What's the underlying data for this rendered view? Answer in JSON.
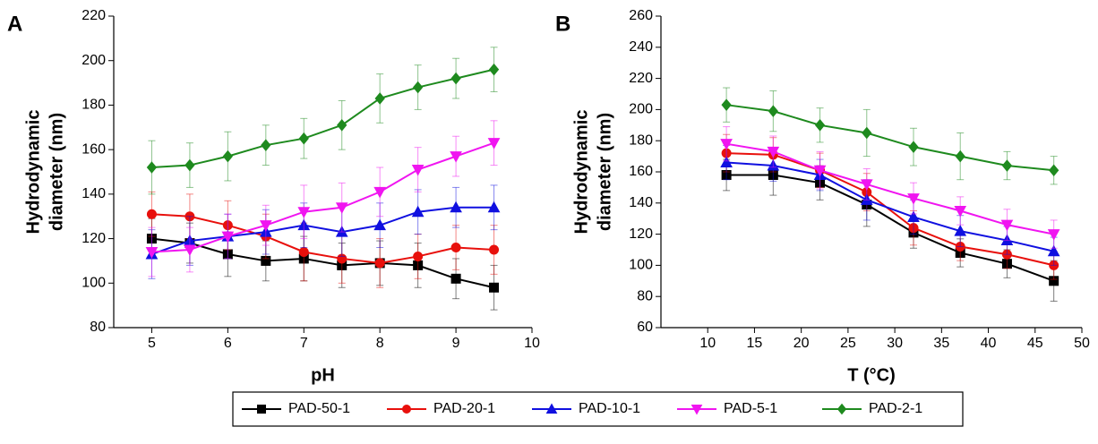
{
  "chart_data": [
    {
      "type": "line",
      "panel": "A",
      "xlabel": "pH",
      "ylabel": [
        "Hydrodynamic",
        "diameter (nm)"
      ],
      "x": [
        5,
        5.5,
        6,
        6.5,
        7,
        7.5,
        8,
        8.5,
        9,
        9.5
      ],
      "xlim": [
        4.5,
        10
      ],
      "xticks": [
        5,
        6,
        7,
        8,
        9,
        10
      ],
      "ylim": [
        80,
        220
      ],
      "yticks": [
        80,
        100,
        120,
        140,
        160,
        180,
        200,
        220
      ],
      "series": [
        {
          "name": "PAD-50-1",
          "color": "#000000",
          "marker": "square",
          "values": [
            120,
            118,
            113,
            110,
            111,
            108,
            109,
            108,
            102,
            98
          ],
          "errors": [
            9,
            9,
            10,
            9,
            10,
            10,
            10,
            10,
            9,
            10
          ]
        },
        {
          "name": "PAD-20-1",
          "color": "#e8100c",
          "marker": "circle",
          "values": [
            131,
            130,
            126,
            121,
            114,
            111,
            109,
            112,
            116,
            115
          ],
          "errors": [
            10,
            10,
            11,
            10,
            13,
            11,
            11,
            10,
            10,
            11
          ]
        },
        {
          "name": "PAD-10-1",
          "color": "#1010e0",
          "marker": "triangle-up",
          "values": [
            113,
            119,
            121,
            123,
            126,
            123,
            126,
            132,
            134,
            134
          ],
          "errors": [
            11,
            11,
            10,
            10,
            10,
            11,
            10,
            10,
            9,
            10
          ]
        },
        {
          "name": "PAD-5-1",
          "color": "#f015f0",
          "marker": "triangle-down",
          "values": [
            114,
            115,
            121,
            126,
            132,
            134,
            141,
            151,
            157,
            163
          ],
          "errors": [
            11,
            10,
            10,
            9,
            12,
            11,
            11,
            10,
            9,
            10
          ]
        },
        {
          "name": "PAD-2-1",
          "color": "#1e8a1e",
          "marker": "diamond",
          "values": [
            152,
            153,
            157,
            162,
            165,
            171,
            183,
            188,
            192,
            196
          ],
          "errors": [
            12,
            10,
            11,
            9,
            9,
            11,
            11,
            10,
            9,
            10
          ]
        }
      ]
    },
    {
      "type": "line",
      "panel": "B",
      "xlabel": "T (°C)",
      "ylabel": [
        "Hydrodynamic",
        "diameter (nm)"
      ],
      "x": [
        12,
        17,
        22,
        27,
        32,
        37,
        42,
        47
      ],
      "xlim": [
        5,
        50
      ],
      "xticks": [
        10,
        15,
        20,
        25,
        30,
        35,
        40,
        45,
        50
      ],
      "ylim": [
        60,
        260
      ],
      "yticks": [
        60,
        80,
        100,
        120,
        140,
        160,
        180,
        200,
        220,
        240,
        260
      ],
      "series": [
        {
          "color": "#000000",
          "marker": "square",
          "values": [
            158,
            158,
            153,
            139,
            121,
            108,
            101,
            90
          ],
          "errors": [
            10,
            13,
            11,
            14,
            10,
            9,
            9,
            13
          ]
        },
        {
          "color": "#e8100c",
          "marker": "circle",
          "values": [
            172,
            171,
            161,
            147,
            124,
            112,
            107,
            100
          ],
          "errors": [
            12,
            11,
            11,
            12,
            11,
            9,
            9,
            9
          ]
        },
        {
          "color": "#1010e0",
          "marker": "triangle-up",
          "values": [
            166,
            164,
            158,
            142,
            131,
            122,
            116,
            109
          ],
          "errors": [
            11,
            10,
            10,
            13,
            11,
            10,
            9,
            9
          ]
        },
        {
          "color": "#f015f0",
          "marker": "triangle-down",
          "values": [
            178,
            173,
            161,
            152,
            143,
            135,
            126,
            120
          ],
          "errors": [
            11,
            10,
            12,
            10,
            10,
            9,
            10,
            9
          ]
        },
        {
          "color": "#1e8a1e",
          "marker": "diamond",
          "values": [
            203,
            199,
            190,
            185,
            176,
            170,
            164,
            161
          ],
          "errors": [
            11,
            13,
            11,
            15,
            12,
            15,
            9,
            9
          ]
        }
      ]
    }
  ]
}
